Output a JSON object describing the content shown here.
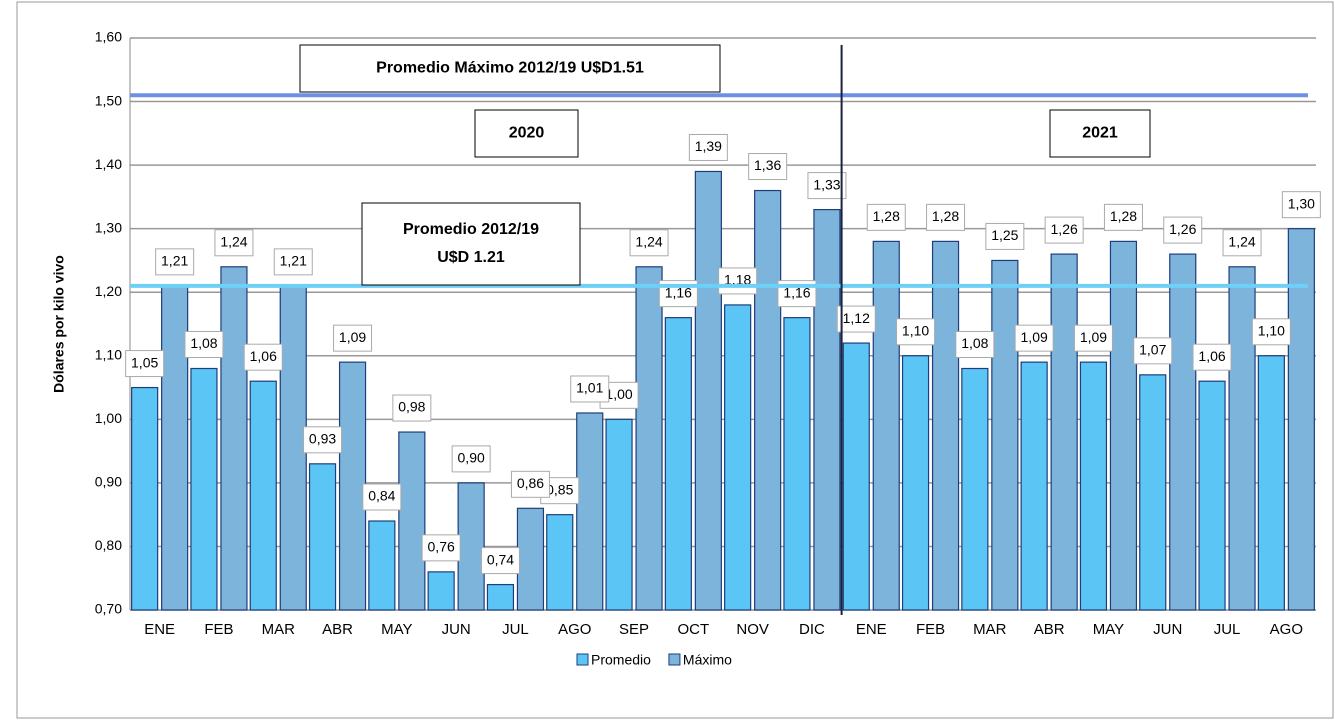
{
  "chart_data": {
    "type": "bar",
    "y_label": "Dólares por kilo vivo",
    "categories": [
      "ENE",
      "FEB",
      "MAR",
      "ABR",
      "MAY",
      "JUN",
      "JUL",
      "AGO",
      "SEP",
      "OCT",
      "NOV",
      "DIC",
      "ENE",
      "FEB",
      "MAR",
      "ABR",
      "MAY",
      "JUN",
      "JUL",
      "AGO"
    ],
    "series": [
      {
        "name": "Promedio",
        "color": "#5bc6f5",
        "values": [
          1.05,
          1.08,
          1.06,
          0.93,
          0.84,
          0.76,
          0.74,
          0.85,
          1.0,
          1.16,
          1.18,
          1.16,
          1.12,
          1.1,
          1.08,
          1.09,
          1.09,
          1.07,
          1.06,
          1.1
        ],
        "value_labels": [
          "1,05",
          "1,08",
          "1,06",
          "0,93",
          "0,84",
          "0,76",
          "0,74",
          "0,85",
          "1,00",
          "1,16",
          "1,18",
          "1,16",
          "1,12",
          "1,10",
          "1,08",
          "1,09",
          "1,09",
          "1,07",
          "1,06",
          "1,10"
        ]
      },
      {
        "name": "Máximo",
        "color": "#7db4dc",
        "values": [
          1.21,
          1.24,
          1.21,
          1.09,
          0.98,
          0.9,
          0.86,
          1.01,
          1.24,
          1.39,
          1.36,
          1.33,
          1.28,
          1.28,
          1.25,
          1.26,
          1.28,
          1.26,
          1.24,
          1.3
        ],
        "value_labels": [
          "1,21",
          "1,24",
          "1,21",
          "1,09",
          "0,98",
          "0,90",
          "0,86",
          "1,01",
          "1,24",
          "1,39",
          "1,36",
          "1,33",
          "1,28",
          "1,28",
          "1,25",
          "1,26",
          "1,28",
          "1,26",
          "1,24",
          "1,30"
        ]
      }
    ],
    "ylim": [
      0.7,
      1.6
    ],
    "yticks": [
      {
        "value": 0.7,
        "label": "0,70"
      },
      {
        "value": 0.8,
        "label": "0,80"
      },
      {
        "value": 0.9,
        "label": "0,90"
      },
      {
        "value": 1.0,
        "label": "1,00"
      },
      {
        "value": 1.1,
        "label": "1,10"
      },
      {
        "value": 1.2,
        "label": "1,20"
      },
      {
        "value": 1.3,
        "label": "1,30"
      },
      {
        "value": 1.4,
        "label": "1,40"
      },
      {
        "value": 1.5,
        "label": "1,50"
      },
      {
        "value": 1.6,
        "label": "1,60"
      }
    ],
    "grid": true,
    "legend": "bottom",
    "reference_lines": [
      {
        "value": 1.51,
        "color": "#6e8fe3"
      },
      {
        "value": 1.21,
        "color": "#6fd0f7"
      }
    ],
    "annotations": [
      {
        "lines": [
          "Promedio Máximo 2012/19 U$D1.51"
        ]
      },
      {
        "lines": [
          "2020"
        ]
      },
      {
        "lines": [
          "2021"
        ]
      },
      {
        "lines": [
          "Promedio 2012/19",
          "U$D 1.21"
        ]
      }
    ]
  }
}
